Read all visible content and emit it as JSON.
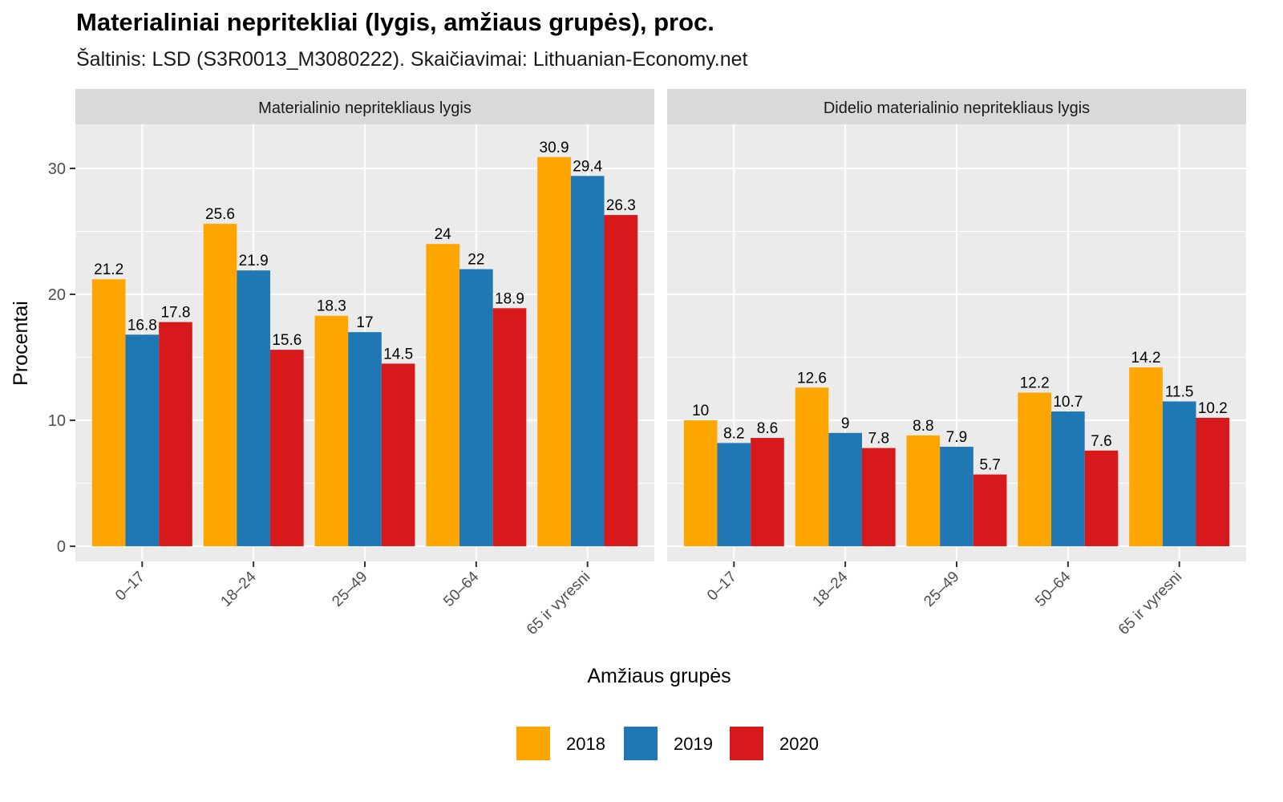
{
  "title": "Materialiniai nepritekliai (lygis, amžiaus grupės), proc.",
  "subtitle": "Šaltinis: LSD (S3R0013_M3080222). Skaičiavimai: Lithuanian-Economy.net",
  "colors": {
    "2018": "#FFA500",
    "2019": "#1F77B4",
    "2020": "#D7191C",
    "panel_bg": "#EBEBEB",
    "strip_bg": "#D9D9D9",
    "grid": "#FFFFFF"
  },
  "chart_data": {
    "type": "bar",
    "xlabel": "Amžiaus grupės",
    "ylabel": "Procentai",
    "ylim": [
      -1.2,
      33.5
    ],
    "yticks": [
      0,
      10,
      20,
      30
    ],
    "grid": true,
    "legend_position": "bottom",
    "legend": [
      "2018",
      "2019",
      "2020"
    ],
    "categories": [
      "0–17",
      "18–24",
      "25–49",
      "50–64",
      "65 ir vyresni"
    ],
    "panels": [
      {
        "strip": "Materialinio nepritekliaus lygis",
        "series": [
          {
            "name": "2018",
            "values": [
              21.2,
              25.6,
              18.3,
              24,
              30.9
            ]
          },
          {
            "name": "2019",
            "values": [
              16.8,
              21.9,
              17,
              22,
              29.4
            ]
          },
          {
            "name": "2020",
            "values": [
              17.8,
              15.6,
              14.5,
              18.9,
              26.3
            ]
          }
        ]
      },
      {
        "strip": "Didelio materialinio nepritekliaus lygis",
        "series": [
          {
            "name": "2018",
            "values": [
              10,
              12.6,
              8.8,
              12.2,
              14.2
            ]
          },
          {
            "name": "2019",
            "values": [
              8.2,
              9,
              7.9,
              10.7,
              11.5
            ]
          },
          {
            "name": "2020",
            "values": [
              8.6,
              7.8,
              5.7,
              7.6,
              10.2
            ]
          }
        ]
      }
    ]
  }
}
